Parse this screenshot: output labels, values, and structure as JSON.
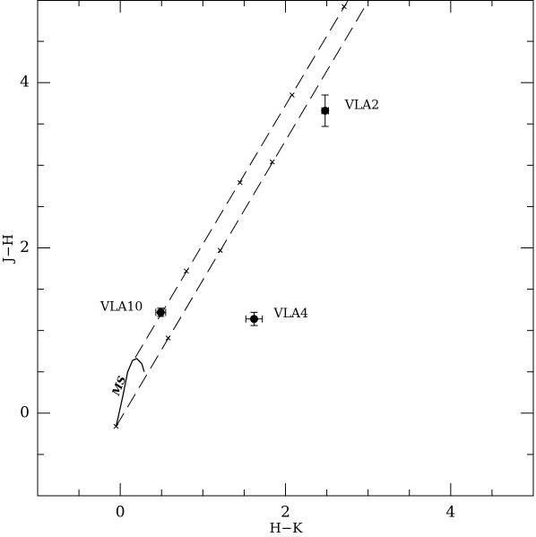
{
  "chart_data": {
    "type": "scatter",
    "xlabel": "H−K",
    "ylabel": "J−H",
    "xlim": [
      -1,
      5
    ],
    "ylim": [
      -1,
      5
    ],
    "xticks": [
      0,
      2,
      4
    ],
    "yticks": [
      0,
      2,
      4
    ],
    "xminorticks": [
      -0.5,
      0.5,
      1,
      1.5,
      2.5,
      3,
      3.5,
      4.5
    ],
    "yminorticks": [
      -0.5,
      0.5,
      1,
      1.5,
      2.5,
      3,
      3.5,
      4.5
    ],
    "points": {
      "names": [
        "VLA2",
        "VLA10",
        "VLA4"
      ],
      "x": [
        2.48,
        0.49,
        1.62
      ],
      "y": [
        3.66,
        1.22,
        1.14
      ],
      "xerr": [
        0.04,
        0.06,
        0.1
      ],
      "yerr": [
        0.19,
        0.05,
        0.08
      ]
    },
    "lines": [
      {
        "x": [
          0.18,
          2.76
        ],
        "y": [
          0.67,
          5
        ],
        "dashed": true
      },
      {
        "x": [
          -0.05,
          3.01
        ],
        "y": [
          -0.16,
          5
        ],
        "dashed": true
      },
      {
        "x": [
          -0.05,
          0.03,
          0.09,
          0.15,
          0.2,
          0.26,
          0.29
        ],
        "y": [
          -0.16,
          0.2,
          0.5,
          0.64,
          0.66,
          0.6,
          0.5
        ],
        "dashed": false
      }
    ],
    "crosses": {
      "x": [
        0.8,
        1.45,
        2.08,
        2.71,
        -0.05,
        0.58,
        1.21,
        1.84
      ],
      "y": [
        1.72,
        2.79,
        3.85,
        4.92,
        -0.16,
        0.91,
        1.97,
        3.04
      ]
    },
    "curve_label": "MS"
  }
}
